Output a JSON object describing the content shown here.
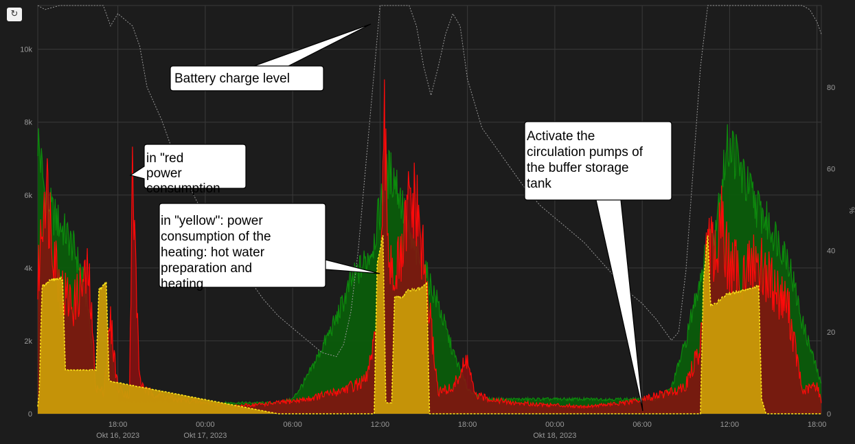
{
  "toolbar": {
    "refresh_icon": "refresh-icon",
    "refresh_glyph": "↻"
  },
  "colors": {
    "background": "#1c1c1c",
    "grid": "#3a3a3a",
    "green": "#0d8a0d",
    "green_fill": "#0b5c0b",
    "red": "#ff0a0a",
    "red_fill": "#8a1010",
    "yellow": "#ffe81a",
    "yellow_fill": "#c99a08",
    "battery": "#9a9a9a"
  },
  "chart_data": {
    "type": "area",
    "x_range_hours": [
      12.5,
      66.3
    ],
    "ylim_left": [
      0,
      11200
    ],
    "ylim_right": [
      0,
      100
    ],
    "y_ticks_left": [
      {
        "value": 0,
        "label": "0"
      },
      {
        "value": 2000,
        "label": "2k"
      },
      {
        "value": 4000,
        "label": "4k"
      },
      {
        "value": 6000,
        "label": "6k"
      },
      {
        "value": 8000,
        "label": "8k"
      },
      {
        "value": 10000,
        "label": "10k"
      }
    ],
    "y_ticks_right": [
      {
        "value": 0,
        "label": "0"
      },
      {
        "value": 20,
        "label": "20"
      },
      {
        "value": 40,
        "label": "40"
      },
      {
        "value": 60,
        "label": "60"
      },
      {
        "value": 80,
        "label": "80"
      }
    ],
    "ylabel_right": "%",
    "x_ticks": [
      {
        "hour": 18,
        "label": "18:00",
        "sublabel": "Okt 16, 2023"
      },
      {
        "hour": 24,
        "label": "00:00",
        "sublabel": "Okt 17, 2023"
      },
      {
        "hour": 30,
        "label": "06:00",
        "sublabel": ""
      },
      {
        "hour": 36,
        "label": "12:00",
        "sublabel": ""
      },
      {
        "hour": 42,
        "label": "18:00",
        "sublabel": ""
      },
      {
        "hour": 48,
        "label": "00:00",
        "sublabel": "Okt 18, 2023"
      },
      {
        "hour": 54,
        "label": "06:00",
        "sublabel": ""
      },
      {
        "hour": 60,
        "label": "12:00",
        "sublabel": ""
      },
      {
        "hour": 66,
        "label": "18:00",
        "sublabel": ""
      }
    ],
    "grid": true,
    "series": [
      {
        "kind": "green",
        "points": [
          [
            12.5,
            7600
          ],
          [
            13.0,
            6000
          ],
          [
            13.5,
            5500
          ],
          [
            14.0,
            5200
          ],
          [
            14.5,
            4900
          ],
          [
            15.0,
            4500
          ],
          [
            15.5,
            3900
          ],
          [
            16.0,
            2800
          ],
          [
            16.5,
            700
          ],
          [
            17.0,
            600
          ],
          [
            17.5,
            2000
          ],
          [
            17.8,
            800
          ],
          [
            18.0,
            300
          ],
          [
            29.0,
            300
          ],
          [
            30.0,
            400
          ],
          [
            31.0,
            1000
          ],
          [
            32.0,
            1800
          ],
          [
            33.0,
            2600
          ],
          [
            34.0,
            3600
          ],
          [
            35.0,
            4200
          ],
          [
            35.5,
            4600
          ],
          [
            36.0,
            5600
          ],
          [
            36.5,
            6600
          ],
          [
            37.0,
            6500
          ],
          [
            37.5,
            5800
          ],
          [
            38.0,
            4800
          ],
          [
            39.0,
            4000
          ],
          [
            40.0,
            3000
          ],
          [
            41.0,
            1700
          ],
          [
            42.0,
            700
          ],
          [
            43.0,
            400
          ],
          [
            55.0,
            400
          ],
          [
            56.0,
            700
          ],
          [
            57.0,
            2000
          ],
          [
            58.0,
            3800
          ],
          [
            59.0,
            5200
          ],
          [
            59.5,
            6500
          ],
          [
            60.0,
            7500
          ],
          [
            60.5,
            7000
          ],
          [
            61.0,
            6400
          ],
          [
            62.0,
            5600
          ],
          [
            63.0,
            5000
          ],
          [
            64.0,
            4300
          ],
          [
            65.0,
            2500
          ],
          [
            66.0,
            1200
          ],
          [
            66.3,
            800
          ]
        ]
      },
      {
        "kind": "red",
        "points": [
          [
            12.5,
            3500
          ],
          [
            13.0,
            6500
          ],
          [
            13.5,
            5000
          ],
          [
            14.0,
            3500
          ],
          [
            14.5,
            3200
          ],
          [
            15.0,
            3000
          ],
          [
            15.5,
            3500
          ],
          [
            16.0,
            3800
          ],
          [
            16.5,
            700
          ],
          [
            17.0,
            600
          ],
          [
            17.5,
            2500
          ],
          [
            18.0,
            700
          ],
          [
            18.8,
            500
          ],
          [
            19.0,
            6500
          ],
          [
            19.5,
            900
          ],
          [
            20.0,
            600
          ],
          [
            22.0,
            400
          ],
          [
            26.0,
            200
          ],
          [
            29.0,
            300
          ],
          [
            31.0,
            400
          ],
          [
            33.0,
            600
          ],
          [
            35.0,
            900
          ],
          [
            36.0,
            2500
          ],
          [
            36.3,
            7500
          ],
          [
            36.6,
            4500
          ],
          [
            37.0,
            3800
          ],
          [
            37.5,
            4200
          ],
          [
            38.0,
            5800
          ],
          [
            38.5,
            5600
          ],
          [
            39.0,
            4100
          ],
          [
            40.0,
            600
          ],
          [
            41.0,
            700
          ],
          [
            42.0,
            1500
          ],
          [
            42.5,
            500
          ],
          [
            45.0,
            300
          ],
          [
            50.0,
            200
          ],
          [
            53.0,
            300
          ],
          [
            55.0,
            500
          ],
          [
            56.0,
            600
          ],
          [
            57.0,
            800
          ],
          [
            58.0,
            1800
          ],
          [
            58.5,
            4700
          ],
          [
            59.0,
            4300
          ],
          [
            59.5,
            5200
          ],
          [
            60.0,
            4000
          ],
          [
            61.0,
            3900
          ],
          [
            62.0,
            4200
          ],
          [
            63.0,
            3500
          ],
          [
            64.0,
            3000
          ],
          [
            65.0,
            600
          ],
          [
            66.0,
            800
          ],
          [
            66.3,
            300
          ]
        ]
      },
      {
        "kind": "yellow",
        "points": [
          [
            12.5,
            200
          ],
          [
            12.6,
            600
          ],
          [
            12.8,
            3500
          ],
          [
            13.5,
            3700
          ],
          [
            14.2,
            3700
          ],
          [
            14.4,
            1200
          ],
          [
            16.5,
            1200
          ],
          [
            16.7,
            3400
          ],
          [
            17.2,
            3600
          ],
          [
            17.4,
            900
          ],
          [
            29.0,
            0
          ],
          [
            35.6,
            0
          ],
          [
            35.8,
            4100
          ],
          [
            36.2,
            4900
          ],
          [
            36.4,
            300
          ],
          [
            36.8,
            300
          ],
          [
            37.0,
            3200
          ],
          [
            37.5,
            3200
          ],
          [
            38.0,
            3400
          ],
          [
            38.5,
            3400
          ],
          [
            39.0,
            3500
          ],
          [
            39.2,
            3600
          ],
          [
            39.4,
            0
          ],
          [
            58.0,
            0
          ],
          [
            58.2,
            3600
          ],
          [
            58.5,
            4900
          ],
          [
            58.7,
            3000
          ],
          [
            59.0,
            3000
          ],
          [
            59.5,
            3200
          ],
          [
            60.0,
            3300
          ],
          [
            61.0,
            3400
          ],
          [
            62.0,
            3500
          ],
          [
            62.2,
            400
          ],
          [
            62.5,
            0
          ],
          [
            66.3,
            0
          ]
        ]
      },
      {
        "kind": "battery",
        "points": [
          [
            12.5,
            100
          ],
          [
            13.0,
            99
          ],
          [
            14.0,
            100
          ],
          [
            16.0,
            100
          ],
          [
            17.0,
            100
          ],
          [
            17.5,
            95
          ],
          [
            18.0,
            98
          ],
          [
            19.0,
            95
          ],
          [
            19.5,
            90
          ],
          [
            20.0,
            80
          ],
          [
            21.0,
            72
          ],
          [
            22.0,
            62
          ],
          [
            23.0,
            55
          ],
          [
            24.0,
            48
          ],
          [
            25.0,
            43
          ],
          [
            26.0,
            38
          ],
          [
            27.0,
            33
          ],
          [
            28.0,
            28
          ],
          [
            29.0,
            24
          ],
          [
            30.0,
            21
          ],
          [
            31.0,
            18
          ],
          [
            32.0,
            15
          ],
          [
            33.0,
            14
          ],
          [
            33.5,
            17
          ],
          [
            34.0,
            25
          ],
          [
            34.5,
            40
          ],
          [
            35.0,
            60
          ],
          [
            35.5,
            80
          ],
          [
            36.0,
            100
          ],
          [
            38.0,
            100
          ],
          [
            38.5,
            95
          ],
          [
            39.0,
            85
          ],
          [
            39.5,
            78
          ],
          [
            40.0,
            85
          ],
          [
            40.5,
            93
          ],
          [
            41.0,
            98
          ],
          [
            41.5,
            95
          ],
          [
            42.0,
            82
          ],
          [
            43.0,
            70
          ],
          [
            44.0,
            65
          ],
          [
            45.0,
            60
          ],
          [
            46.0,
            55
          ],
          [
            47.0,
            51
          ],
          [
            48.0,
            48
          ],
          [
            49.0,
            45
          ],
          [
            50.0,
            42
          ],
          [
            51.0,
            38
          ],
          [
            52.0,
            34
          ],
          [
            53.0,
            30
          ],
          [
            54.0,
            27
          ],
          [
            55.0,
            23
          ],
          [
            56.0,
            18
          ],
          [
            56.5,
            20
          ],
          [
            57.0,
            35
          ],
          [
            57.5,
            60
          ],
          [
            58.0,
            85
          ],
          [
            58.5,
            100
          ],
          [
            64.0,
            100
          ],
          [
            65.0,
            100
          ],
          [
            65.5,
            99
          ],
          [
            66.0,
            96
          ],
          [
            66.3,
            93
          ]
        ]
      }
    ],
    "annotations": [
      {
        "text": "Battery charge level"
      },
      {
        "text": "in \"red power consumption"
      },
      {
        "text": "in \"yellow\": power consumption of the heating: hot water preparation and heating"
      },
      {
        "text": "Activate the circulation pumps of the buffer storage tank"
      }
    ]
  }
}
